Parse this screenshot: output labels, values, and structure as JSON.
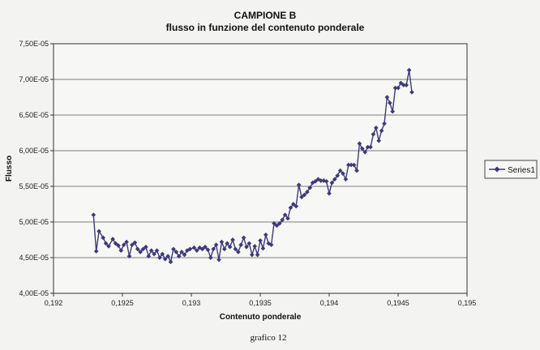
{
  "chart_data": {
    "type": "line",
    "title": "CAMPIONE B",
    "subtitle": "flusso in funzione del contenuto ponderale",
    "xlabel": "Contenuto ponderale",
    "ylabel": "Flusso",
    "xlim": [
      0.192,
      0.195
    ],
    "ylim": [
      4e-05,
      7.5e-05
    ],
    "x_ticks": [
      "0,192",
      "0,1925",
      "0,193",
      "0,1935",
      "0,194",
      "0,1945",
      "0,195"
    ],
    "y_ticks": [
      "4,00E-05",
      "4,50E-05",
      "5,00E-05",
      "5,50E-05",
      "6,00E-05",
      "6,50E-05",
      "7,00E-05",
      "7,50E-05"
    ],
    "grid": "horizontal",
    "legend": "right",
    "caption": "grafico 12",
    "colors": {
      "series": "#3b3a7a",
      "plot_bg": "#f7f7f5",
      "page_bg": "#f3f3f1",
      "grid": "#555555"
    },
    "series": [
      {
        "name": "Series1",
        "points": [
          [
            0.19229,
            5.1e-05
          ],
          [
            0.19231,
            4.59e-05
          ],
          [
            0.19233,
            4.87e-05
          ],
          [
            0.19236,
            4.78e-05
          ],
          [
            0.19238,
            4.7e-05
          ],
          [
            0.1924,
            4.66e-05
          ],
          [
            0.19243,
            4.76e-05
          ],
          [
            0.19245,
            4.7e-05
          ],
          [
            0.19247,
            4.67e-05
          ],
          [
            0.19249,
            4.6e-05
          ],
          [
            0.19251,
            4.68e-05
          ],
          [
            0.19253,
            4.72e-05
          ],
          [
            0.19255,
            4.52e-05
          ],
          [
            0.19257,
            4.68e-05
          ],
          [
            0.19259,
            4.71e-05
          ],
          [
            0.19261,
            4.62e-05
          ],
          [
            0.19263,
            4.58e-05
          ],
          [
            0.19265,
            4.62e-05
          ],
          [
            0.19267,
            4.65e-05
          ],
          [
            0.19269,
            4.52e-05
          ],
          [
            0.19271,
            4.6e-05
          ],
          [
            0.19273,
            4.55e-05
          ],
          [
            0.19275,
            4.6e-05
          ],
          [
            0.19277,
            4.5e-05
          ],
          [
            0.19279,
            4.55e-05
          ],
          [
            0.19281,
            4.48e-05
          ],
          [
            0.19283,
            4.52e-05
          ],
          [
            0.19285,
            4.44e-05
          ],
          [
            0.19287,
            4.62e-05
          ],
          [
            0.19289,
            4.58e-05
          ],
          [
            0.19291,
            4.52e-05
          ],
          [
            0.19293,
            4.58e-05
          ],
          [
            0.19295,
            4.54e-05
          ],
          [
            0.19297,
            4.6e-05
          ],
          [
            0.19299,
            4.62e-05
          ],
          [
            0.19302,
            4.64e-05
          ],
          [
            0.19304,
            4.6e-05
          ],
          [
            0.19306,
            4.64e-05
          ],
          [
            0.19308,
            4.62e-05
          ],
          [
            0.1931,
            4.65e-05
          ],
          [
            0.19312,
            4.61e-05
          ],
          [
            0.19314,
            4.5e-05
          ],
          [
            0.19316,
            4.62e-05
          ],
          [
            0.19318,
            4.68e-05
          ],
          [
            0.1932,
            4.47e-05
          ],
          [
            0.19322,
            4.72e-05
          ],
          [
            0.19324,
            4.62e-05
          ],
          [
            0.19326,
            4.7e-05
          ],
          [
            0.19328,
            4.65e-05
          ],
          [
            0.1933,
            4.75e-05
          ],
          [
            0.19332,
            4.62e-05
          ],
          [
            0.19334,
            4.58e-05
          ],
          [
            0.19336,
            4.68e-05
          ],
          [
            0.19338,
            4.78e-05
          ],
          [
            0.1934,
            4.65e-05
          ],
          [
            0.19342,
            4.7e-05
          ],
          [
            0.19344,
            4.54e-05
          ],
          [
            0.19346,
            4.66e-05
          ],
          [
            0.19348,
            4.54e-05
          ],
          [
            0.1935,
            4.74e-05
          ],
          [
            0.19352,
            4.63e-05
          ],
          [
            0.19354,
            4.82e-05
          ],
          [
            0.19356,
            4.7e-05
          ],
          [
            0.19358,
            4.68e-05
          ],
          [
            0.1936,
            4.98e-05
          ],
          [
            0.19362,
            4.95e-05
          ],
          [
            0.19364,
            4.98e-05
          ],
          [
            0.19366,
            5.03e-05
          ],
          [
            0.19368,
            5.1e-05
          ],
          [
            0.1937,
            5.05e-05
          ],
          [
            0.19372,
            5.2e-05
          ],
          [
            0.19374,
            5.25e-05
          ],
          [
            0.19376,
            5.22e-05
          ],
          [
            0.19378,
            5.52e-05
          ],
          [
            0.1938,
            5.35e-05
          ],
          [
            0.19382,
            5.38e-05
          ],
          [
            0.19384,
            5.42e-05
          ],
          [
            0.19386,
            5.48e-05
          ],
          [
            0.19388,
            5.55e-05
          ],
          [
            0.1939,
            5.57e-05
          ],
          [
            0.19392,
            5.6e-05
          ],
          [
            0.19394,
            5.58e-05
          ],
          [
            0.19396,
            5.58e-05
          ],
          [
            0.19398,
            5.57e-05
          ],
          [
            0.194,
            5.4e-05
          ],
          [
            0.19402,
            5.55e-05
          ],
          [
            0.19404,
            5.6e-05
          ],
          [
            0.19406,
            5.65e-05
          ],
          [
            0.19408,
            5.72e-05
          ],
          [
            0.1941,
            5.68e-05
          ],
          [
            0.19412,
            5.6e-05
          ],
          [
            0.19414,
            5.8e-05
          ],
          [
            0.19416,
            5.8e-05
          ],
          [
            0.19418,
            5.8e-05
          ],
          [
            0.1942,
            5.72e-05
          ],
          [
            0.19422,
            6.1e-05
          ],
          [
            0.19424,
            6.03e-05
          ],
          [
            0.19426,
            5.98e-05
          ],
          [
            0.19428,
            6.05e-05
          ],
          [
            0.1943,
            6.05e-05
          ],
          [
            0.19432,
            6.23e-05
          ],
          [
            0.19434,
            6.32e-05
          ],
          [
            0.19436,
            6.14e-05
          ],
          [
            0.19438,
            6.28e-05
          ],
          [
            0.1944,
            6.38e-05
          ],
          [
            0.19442,
            6.75e-05
          ],
          [
            0.19444,
            6.67e-05
          ],
          [
            0.19446,
            6.55e-05
          ],
          [
            0.19448,
            6.88e-05
          ],
          [
            0.1945,
            6.88e-05
          ],
          [
            0.19452,
            6.95e-05
          ],
          [
            0.19454,
            6.92e-05
          ],
          [
            0.19456,
            6.92e-05
          ],
          [
            0.19458,
            7.13e-05
          ],
          [
            0.1946,
            6.82e-05
          ]
        ]
      }
    ]
  }
}
